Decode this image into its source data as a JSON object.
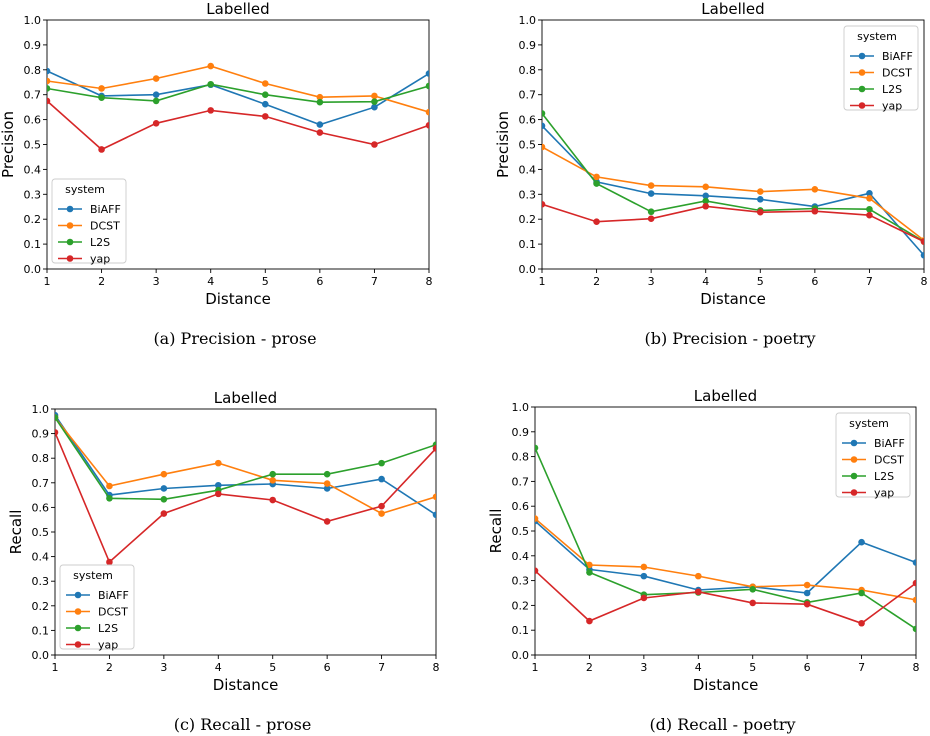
{
  "chart_data": [
    {
      "type": "line",
      "title": "Labelled",
      "xlabel": "Distance",
      "ylabel": "Precision",
      "caption": "(a) Precision - prose",
      "x": [
        1,
        2,
        3,
        4,
        5,
        6,
        7,
        8
      ],
      "xlim": [
        1,
        8
      ],
      "ylim": [
        0,
        1
      ],
      "xticks": [
        "1",
        "2",
        "3",
        "4",
        "5",
        "6",
        "7",
        "8"
      ],
      "yticks": [
        "0.0",
        "0.1",
        "0.2",
        "0.3",
        "0.4",
        "0.5",
        "0.6",
        "0.7",
        "0.8",
        "0.9",
        "1.0"
      ],
      "legend": {
        "title": "system",
        "position": "lower-left"
      },
      "series": [
        {
          "name": "BiAFF",
          "color": "#1f77b4",
          "values": [
            0.795,
            0.695,
            0.7,
            0.74,
            0.662,
            0.58,
            0.65,
            0.785
          ]
        },
        {
          "name": "DCST",
          "color": "#ff7f0e",
          "values": [
            0.755,
            0.725,
            0.765,
            0.815,
            0.745,
            0.69,
            0.695,
            0.63
          ]
        },
        {
          "name": "L2S",
          "color": "#2ca02c",
          "values": [
            0.725,
            0.688,
            0.675,
            0.742,
            0.7,
            0.67,
            0.672,
            0.735
          ]
        },
        {
          "name": "yap",
          "color": "#d62728",
          "values": [
            0.675,
            0.48,
            0.585,
            0.637,
            0.613,
            0.548,
            0.5,
            0.577
          ]
        }
      ]
    },
    {
      "type": "line",
      "title": "Labelled",
      "xlabel": "Distance",
      "ylabel": "Precision",
      "caption": "(b) Precision - poetry",
      "x": [
        1,
        2,
        3,
        4,
        5,
        6,
        7,
        8
      ],
      "xlim": [
        1,
        8
      ],
      "ylim": [
        0,
        1
      ],
      "xticks": [
        "1",
        "2",
        "3",
        "4",
        "5",
        "6",
        "7",
        "8"
      ],
      "yticks": [
        "0.0",
        "0.1",
        "0.2",
        "0.3",
        "0.4",
        "0.5",
        "0.6",
        "0.7",
        "0.8",
        "0.9",
        "1.0"
      ],
      "legend": {
        "title": "system",
        "position": "upper-right"
      },
      "series": [
        {
          "name": "BiAFF",
          "color": "#1f77b4",
          "values": [
            0.575,
            0.35,
            0.303,
            0.294,
            0.28,
            0.251,
            0.304,
            0.055
          ]
        },
        {
          "name": "DCST",
          "color": "#ff7f0e",
          "values": [
            0.49,
            0.37,
            0.335,
            0.33,
            0.311,
            0.32,
            0.284,
            0.115
          ]
        },
        {
          "name": "L2S",
          "color": "#2ca02c",
          "values": [
            0.625,
            0.343,
            0.23,
            0.273,
            0.235,
            0.243,
            0.24,
            0.11
          ]
        },
        {
          "name": "yap",
          "color": "#d62728",
          "values": [
            0.26,
            0.19,
            0.202,
            0.252,
            0.228,
            0.232,
            0.216,
            0.11
          ]
        }
      ]
    },
    {
      "type": "line",
      "title": "Labelled",
      "xlabel": "Distance",
      "ylabel": "Recall",
      "caption": "(c) Recall - prose",
      "x": [
        1,
        2,
        3,
        4,
        5,
        6,
        7,
        8
      ],
      "xlim": [
        1,
        8
      ],
      "ylim": [
        0,
        1
      ],
      "xticks": [
        "1",
        "2",
        "3",
        "4",
        "5",
        "6",
        "7",
        "8"
      ],
      "yticks": [
        "0.0",
        "0.1",
        "0.2",
        "0.3",
        "0.4",
        "0.5",
        "0.6",
        "0.7",
        "0.8",
        "0.9",
        "1.0"
      ],
      "legend": {
        "title": "system",
        "position": "lower-left"
      },
      "series": [
        {
          "name": "BiAFF",
          "color": "#1f77b4",
          "values": [
            0.975,
            0.65,
            0.677,
            0.69,
            0.695,
            0.677,
            0.715,
            0.57
          ]
        },
        {
          "name": "DCST",
          "color": "#ff7f0e",
          "values": [
            0.965,
            0.687,
            0.735,
            0.78,
            0.71,
            0.697,
            0.575,
            0.643
          ]
        },
        {
          "name": "L2S",
          "color": "#2ca02c",
          "values": [
            0.965,
            0.637,
            0.633,
            0.67,
            0.735,
            0.735,
            0.78,
            0.855
          ]
        },
        {
          "name": "yap",
          "color": "#d62728",
          "values": [
            0.905,
            0.378,
            0.575,
            0.655,
            0.63,
            0.543,
            0.605,
            0.84
          ]
        }
      ]
    },
    {
      "type": "line",
      "title": "Labelled",
      "xlabel": "Distance",
      "ylabel": "Recall",
      "caption": "(d) Recall - poetry",
      "x": [
        1,
        2,
        3,
        4,
        5,
        6,
        7,
        8
      ],
      "xlim": [
        1,
        8
      ],
      "ylim": [
        0,
        1
      ],
      "xticks": [
        "1",
        "2",
        "3",
        "4",
        "5",
        "6",
        "7",
        "8"
      ],
      "yticks": [
        "0.0",
        "0.1",
        "0.2",
        "0.3",
        "0.4",
        "0.5",
        "0.6",
        "0.7",
        "0.8",
        "0.9",
        "1.0"
      ],
      "legend": {
        "title": "system",
        "position": "upper-right"
      },
      "series": [
        {
          "name": "BiAFF",
          "color": "#1f77b4",
          "values": [
            0.54,
            0.345,
            0.318,
            0.262,
            0.275,
            0.25,
            0.455,
            0.373
          ]
        },
        {
          "name": "DCST",
          "color": "#ff7f0e",
          "values": [
            0.55,
            0.363,
            0.355,
            0.318,
            0.275,
            0.282,
            0.262,
            0.222
          ]
        },
        {
          "name": "L2S",
          "color": "#2ca02c",
          "values": [
            0.835,
            0.333,
            0.243,
            0.252,
            0.265,
            0.212,
            0.25,
            0.105
          ]
        },
        {
          "name": "yap",
          "color": "#d62728",
          "values": [
            0.34,
            0.137,
            0.23,
            0.255,
            0.21,
            0.205,
            0.128,
            0.29
          ]
        }
      ]
    }
  ]
}
